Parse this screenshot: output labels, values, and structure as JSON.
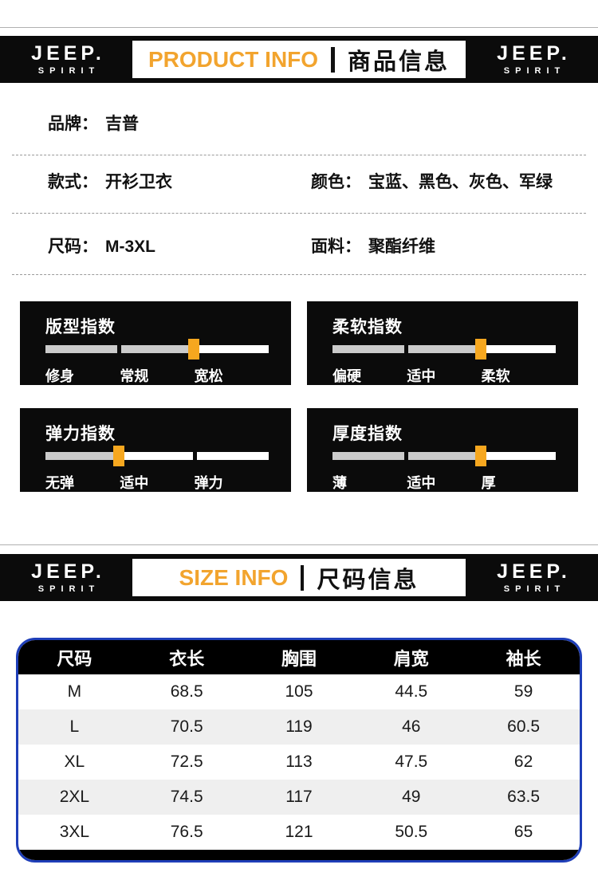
{
  "logo": {
    "top": "JEEP.",
    "bottom": "SPIRIT"
  },
  "banners": {
    "product": {
      "en": "PRODUCT INFO",
      "zh": "商品信息"
    },
    "size": {
      "en": "SIZE INFO",
      "zh": "尺码信息"
    }
  },
  "info": {
    "brand": {
      "label": "品牌：",
      "value": "吉普"
    },
    "style": {
      "label": "款式：",
      "value": "开衫卫衣"
    },
    "color": {
      "label": "颜色：",
      "value": "宝蓝、黑色、灰色、军绿"
    },
    "size_range": {
      "label": "尺码：",
      "value": "M-3XL"
    },
    "fabric": {
      "label": "面料：",
      "value": "聚酯纤维"
    }
  },
  "index_boxes": [
    {
      "title": "版型指数",
      "labels": [
        "修身",
        "常规",
        "宽松"
      ],
      "marker_segment": 2
    },
    {
      "title": "柔软指数",
      "labels": [
        "偏硬",
        "适中",
        "柔软"
      ],
      "marker_segment": 2
    },
    {
      "title": "弹力指数",
      "labels": [
        "无弹",
        "适中",
        "弹力"
      ],
      "marker_segment": 1
    },
    {
      "title": "厚度指数",
      "labels": [
        "薄",
        "适中",
        "厚"
      ],
      "marker_segment": 2
    }
  ],
  "size_table": {
    "headers": [
      "尺码",
      "衣长",
      "胸围",
      "肩宽",
      "袖长"
    ],
    "rows": [
      [
        "M",
        "68.5",
        "105",
        "44.5",
        "59"
      ],
      [
        "L",
        "70.5",
        "119",
        "46",
        "60.5"
      ],
      [
        "XL",
        "72.5",
        "113",
        "47.5",
        "62"
      ],
      [
        "2XL",
        "74.5",
        "117",
        "49",
        "63.5"
      ],
      [
        "3XL",
        "76.5",
        "121",
        "50.5",
        "65"
      ]
    ]
  },
  "colors": {
    "accent_orange": "#F2A42E",
    "marker_orange": "#F6A71F",
    "bar_gray": "#CBCBCB",
    "table_border_blue": "#1E3EB8",
    "banner_black": "#0B0B0B"
  }
}
